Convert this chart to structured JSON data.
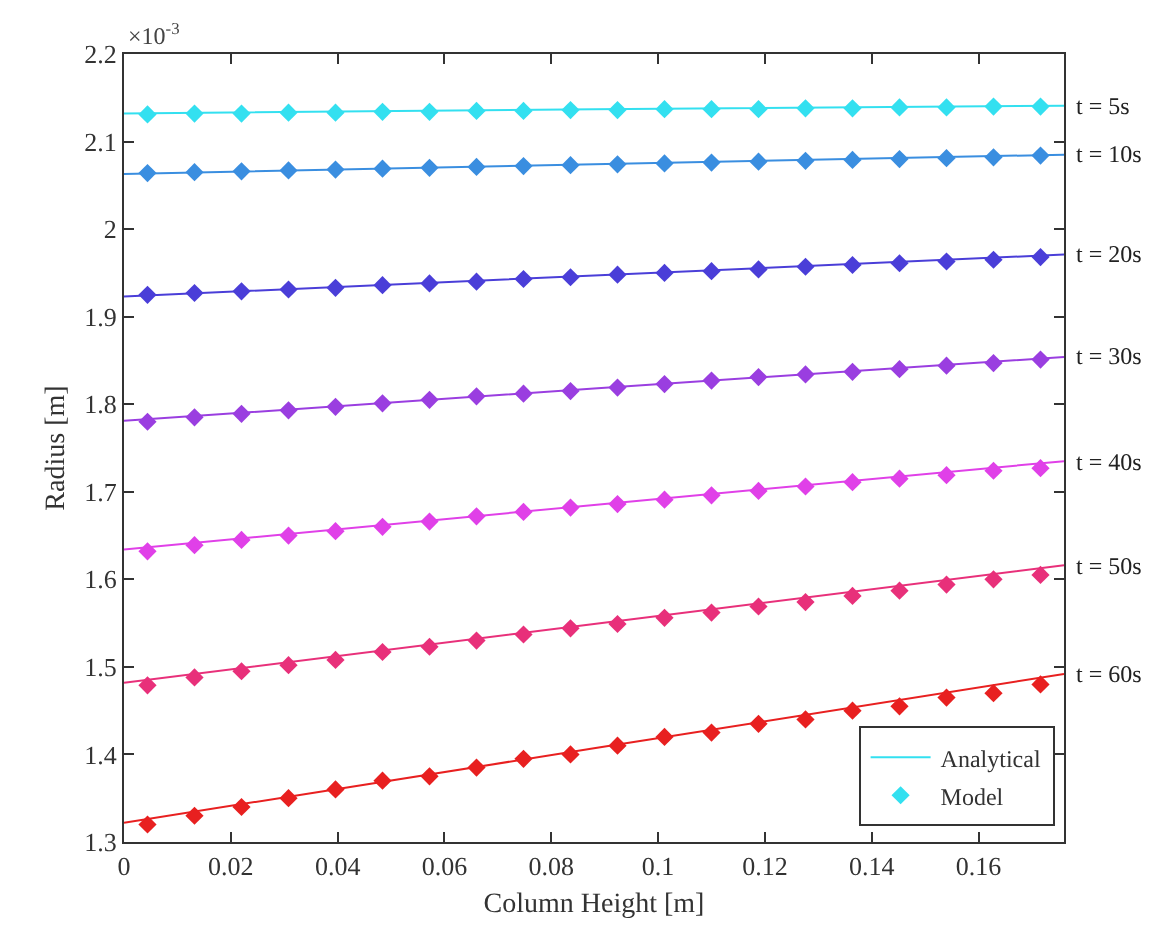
{
  "chart_data": {
    "type": "line",
    "xlabel": "Column Height [m]",
    "ylabel": "Radius [m]",
    "xlim": [
      0,
      0.176
    ],
    "xticks": [
      0,
      0.02,
      0.04,
      0.06,
      0.08,
      0.1,
      0.12,
      0.14,
      0.16
    ],
    "ylim": [
      1.3,
      2.2
    ],
    "yticks": [
      1.3,
      1.4,
      1.5,
      1.6,
      1.7,
      1.8,
      1.9,
      2,
      2.1,
      2.2
    ],
    "legend": "bottom right",
    "line_style": "solid",
    "annotations": [
      "×10$^{-3}$",
      "t = 5s",
      "t = 10s",
      "t = 20s",
      "t = 30s",
      "t = 40s",
      "t = 50s",
      "t = 60s"
    ],
    "series": [
      {
        "name": "Analytical",
        "type": "line",
        "color": "#33e0f0",
        "x": [
          0,
          0.088,
          0.176
        ],
        "values": [
          2.132,
          2.137,
          2.141
        ]
      },
      {
        "type": "line",
        "color": "#3a8ee0",
        "x": [
          0,
          0.088,
          0.176
        ],
        "values": [
          2.063,
          2.074,
          2.085
        ]
      },
      {
        "type": "line",
        "color": "#4a3ed8",
        "x": [
          0,
          0.088,
          0.176
        ],
        "values": [
          1.923,
          1.947,
          1.971
        ]
      },
      {
        "type": "line",
        "color": "#9a3ee0",
        "x": [
          0,
          0.088,
          0.176
        ],
        "values": [
          1.781,
          1.818,
          1.854
        ]
      },
      {
        "type": "line",
        "color": "#e040e8",
        "x": [
          0,
          0.088,
          0.176
        ],
        "values": [
          1.634,
          1.685,
          1.735
        ]
      },
      {
        "type": "line",
        "color": "#e8307a",
        "x": [
          0,
          0.088,
          0.176
        ],
        "values": [
          1.482,
          1.549,
          1.616
        ]
      },
      {
        "type": "line",
        "color": "#e82020",
        "x": [
          0,
          0.088,
          0.176
        ],
        "values": [
          1.322,
          1.407,
          1.492
        ]
      },
      {
        "name": "Model",
        "type": "scatter",
        "marker": "diamond",
        "color": "#33e0f0",
        "values": [
          2.131,
          2.132,
          2.132,
          2.133,
          2.133,
          2.134,
          2.134,
          2.135,
          2.135,
          2.136,
          2.136,
          2.137,
          2.137,
          2.137,
          2.138,
          2.138,
          2.139,
          2.139,
          2.14,
          2.14
        ]
      },
      {
        "type": "scatter",
        "marker": "diamond",
        "color": "#3a8ee0",
        "values": [
          2.064,
          2.065,
          2.066,
          2.067,
          2.068,
          2.069,
          2.07,
          2.071,
          2.072,
          2.073,
          2.074,
          2.075,
          2.076,
          2.077,
          2.078,
          2.079,
          2.08,
          2.081,
          2.082,
          2.084
        ]
      },
      {
        "type": "scatter",
        "marker": "diamond",
        "color": "#4a3ed8",
        "values": [
          1.925,
          1.927,
          1.929,
          1.931,
          1.933,
          1.936,
          1.938,
          1.94,
          1.943,
          1.945,
          1.948,
          1.95,
          1.952,
          1.954,
          1.957,
          1.959,
          1.961,
          1.963,
          1.965,
          1.968
        ]
      },
      {
        "type": "scatter",
        "marker": "diamond",
        "color": "#9a3ee0",
        "values": [
          1.78,
          1.785,
          1.789,
          1.793,
          1.797,
          1.801,
          1.805,
          1.809,
          1.812,
          1.815,
          1.819,
          1.823,
          1.827,
          1.831,
          1.834,
          1.837,
          1.84,
          1.844,
          1.847,
          1.851
        ]
      },
      {
        "type": "scatter",
        "marker": "diamond",
        "color": "#e040e8",
        "values": [
          1.632,
          1.639,
          1.645,
          1.65,
          1.655,
          1.66,
          1.666,
          1.672,
          1.677,
          1.682,
          1.686,
          1.691,
          1.696,
          1.701,
          1.706,
          1.711,
          1.715,
          1.719,
          1.724,
          1.727
        ]
      },
      {
        "type": "scatter",
        "marker": "diamond",
        "color": "#e8307a",
        "values": [
          1.479,
          1.488,
          1.495,
          1.502,
          1.508,
          1.517,
          1.523,
          1.53,
          1.537,
          1.544,
          1.549,
          1.556,
          1.562,
          1.569,
          1.574,
          1.581,
          1.587,
          1.594,
          1.6,
          1.605
        ]
      },
      {
        "type": "scatter",
        "marker": "diamond",
        "color": "#e82020",
        "values": [
          1.32,
          1.33,
          1.34,
          1.35,
          1.36,
          1.37,
          1.375,
          1.385,
          1.395,
          1.4,
          1.41,
          1.42,
          1.425,
          1.435,
          1.44,
          1.45,
          1.455,
          1.465,
          1.47,
          1.48
        ]
      }
    ],
    "x": [
      0.0044,
      0.0132,
      0.022,
      0.0308,
      0.0396,
      0.0484,
      0.0572,
      0.066,
      0.0748,
      0.0836,
      0.0924,
      0.1012,
      0.11,
      0.1188,
      0.1276,
      0.1364,
      0.1452,
      0.154,
      0.1628,
      0.1716
    ]
  }
}
